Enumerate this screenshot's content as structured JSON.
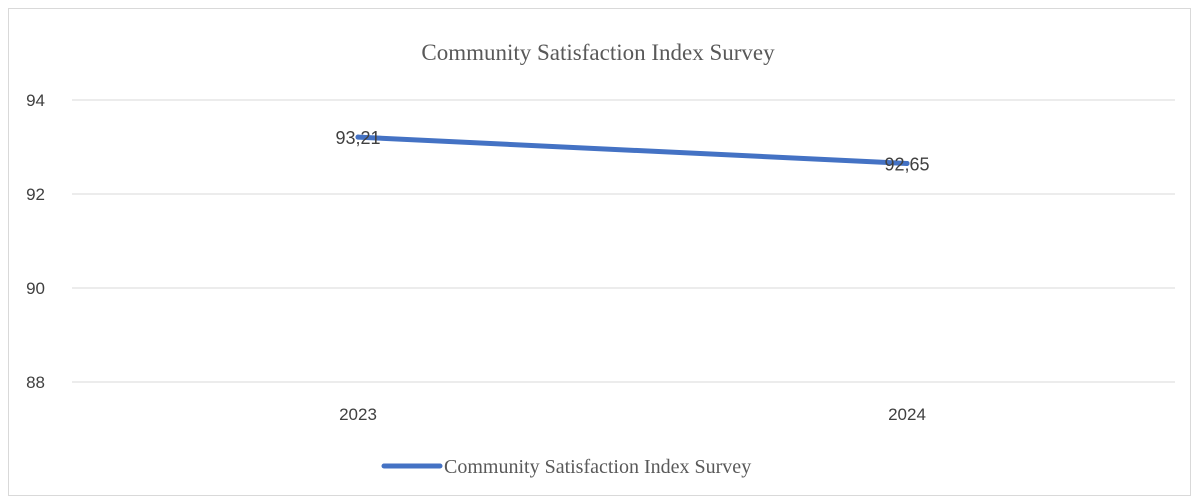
{
  "chart_data": {
    "type": "line",
    "title": "Community Satisfaction Index Survey",
    "categories": [
      "2023",
      "2024"
    ],
    "series": [
      {
        "name": "Community Satisfaction Index Survey",
        "values": [
          93.21,
          92.65
        ],
        "data_labels": [
          "93,21",
          "92,65"
        ],
        "color": "#4472c4"
      }
    ],
    "yticks": [
      88,
      90,
      92,
      94
    ],
    "ytick_labels": [
      "88",
      "90",
      "92",
      "94"
    ],
    "ylim": [
      88,
      94
    ],
    "grid": true,
    "legend": "bottom"
  }
}
